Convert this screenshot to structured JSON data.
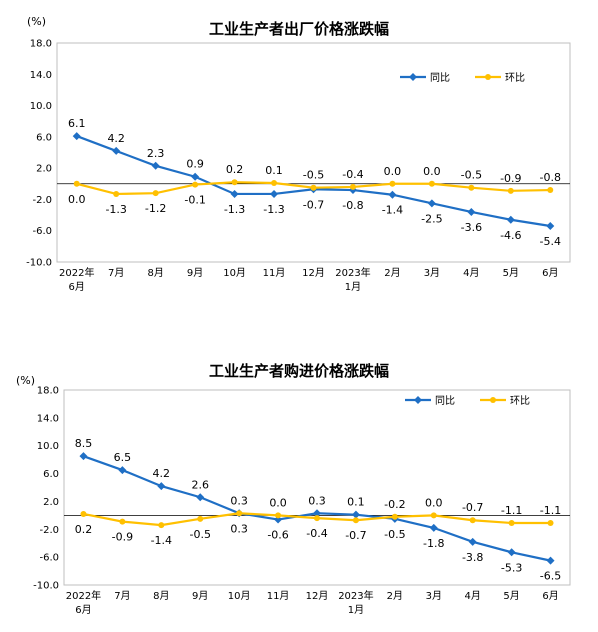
{
  "chart_data": [
    {
      "type": "line",
      "title": "工业生产者出厂价格涨跌幅",
      "unit": "(%)",
      "categories": [
        [
          "2022年",
          "6月"
        ],
        [
          "7月"
        ],
        [
          "8月"
        ],
        [
          "9月"
        ],
        [
          "10月"
        ],
        [
          "11月"
        ],
        [
          "12月"
        ],
        [
          "2023年",
          "1月"
        ],
        [
          "2月"
        ],
        [
          "3月"
        ],
        [
          "4月"
        ],
        [
          "5月"
        ],
        [
          "6月"
        ]
      ],
      "ylim": [
        -10,
        18
      ],
      "yticks": [
        "18.0",
        "14.0",
        "10.0",
        "6.0",
        "2.0",
        "-2.0",
        "-6.0",
        "-10.0"
      ],
      "legend": {
        "position": "top-right",
        "entries": [
          "同比",
          "环比"
        ]
      },
      "series": [
        {
          "name": "同比",
          "color": "#1f6fc5",
          "values": [
            6.1,
            4.2,
            2.3,
            0.9,
            -1.3,
            -1.3,
            -0.7,
            -0.8,
            -1.4,
            -2.5,
            -3.6,
            -4.6,
            -5.4
          ],
          "labels": [
            "6.1",
            "4.2",
            "2.3",
            "0.9",
            "-1.3",
            "-1.3",
            "-0.7",
            "-0.8",
            "-1.4",
            "-2.5",
            "-3.6",
            "-4.6",
            "-5.4"
          ]
        },
        {
          "name": "环比",
          "color": "#ffc000",
          "values": [
            0.0,
            -1.3,
            -1.2,
            -0.1,
            0.2,
            0.1,
            -0.5,
            -0.4,
            0.0,
            0.0,
            -0.5,
            -0.9,
            -0.8
          ],
          "labels": [
            "0.0",
            "-1.3",
            "-1.2",
            "-0.1",
            "0.2",
            "0.1",
            "-0.5",
            "-0.4",
            "0.0",
            "0.0",
            "-0.5",
            "-0.9",
            "-0.8"
          ]
        }
      ]
    },
    {
      "type": "line",
      "title": "工业生产者购进价格涨跌幅",
      "unit": "(%)",
      "categories": [
        [
          "2022年",
          "6月"
        ],
        [
          "7月"
        ],
        [
          "8月"
        ],
        [
          "9月"
        ],
        [
          "10月"
        ],
        [
          "11月"
        ],
        [
          "12月"
        ],
        [
          "2023年",
          "1月"
        ],
        [
          "2月"
        ],
        [
          "3月"
        ],
        [
          "4月"
        ],
        [
          "5月"
        ],
        [
          "6月"
        ]
      ],
      "ylim": [
        -10,
        18
      ],
      "yticks": [
        "18.0",
        "14.0",
        "10.0",
        "6.0",
        "2.0",
        "-2.0",
        "-6.0",
        "-10.0"
      ],
      "legend": {
        "position": "top-right",
        "entries": [
          "同比",
          "环比"
        ]
      },
      "series": [
        {
          "name": "同比",
          "color": "#1f6fc5",
          "values": [
            8.5,
            6.5,
            4.2,
            2.6,
            0.3,
            -0.6,
            0.3,
            0.1,
            -0.5,
            -1.8,
            -3.8,
            -5.3,
            -6.5
          ],
          "labels": [
            "8.5",
            "6.5",
            "4.2",
            "2.6",
            "0.3",
            "-0.6",
            "0.3",
            "0.1",
            "-0.5",
            "-1.8",
            "-3.8",
            "-5.3",
            "-6.5"
          ]
        },
        {
          "name": "环比",
          "color": "#ffc000",
          "values": [
            0.2,
            -0.9,
            -1.4,
            -0.5,
            0.3,
            0.0,
            -0.4,
            -0.7,
            -0.2,
            0.0,
            -0.7,
            -1.1,
            -1.1
          ],
          "labels": [
            "0.2",
            "-0.9",
            "-1.4",
            "-0.5",
            "0.3",
            "0.0",
            "-0.4",
            "-0.7",
            "-0.2",
            "0.0",
            "-0.7",
            "-1.1",
            "-1.1"
          ]
        }
      ]
    }
  ]
}
